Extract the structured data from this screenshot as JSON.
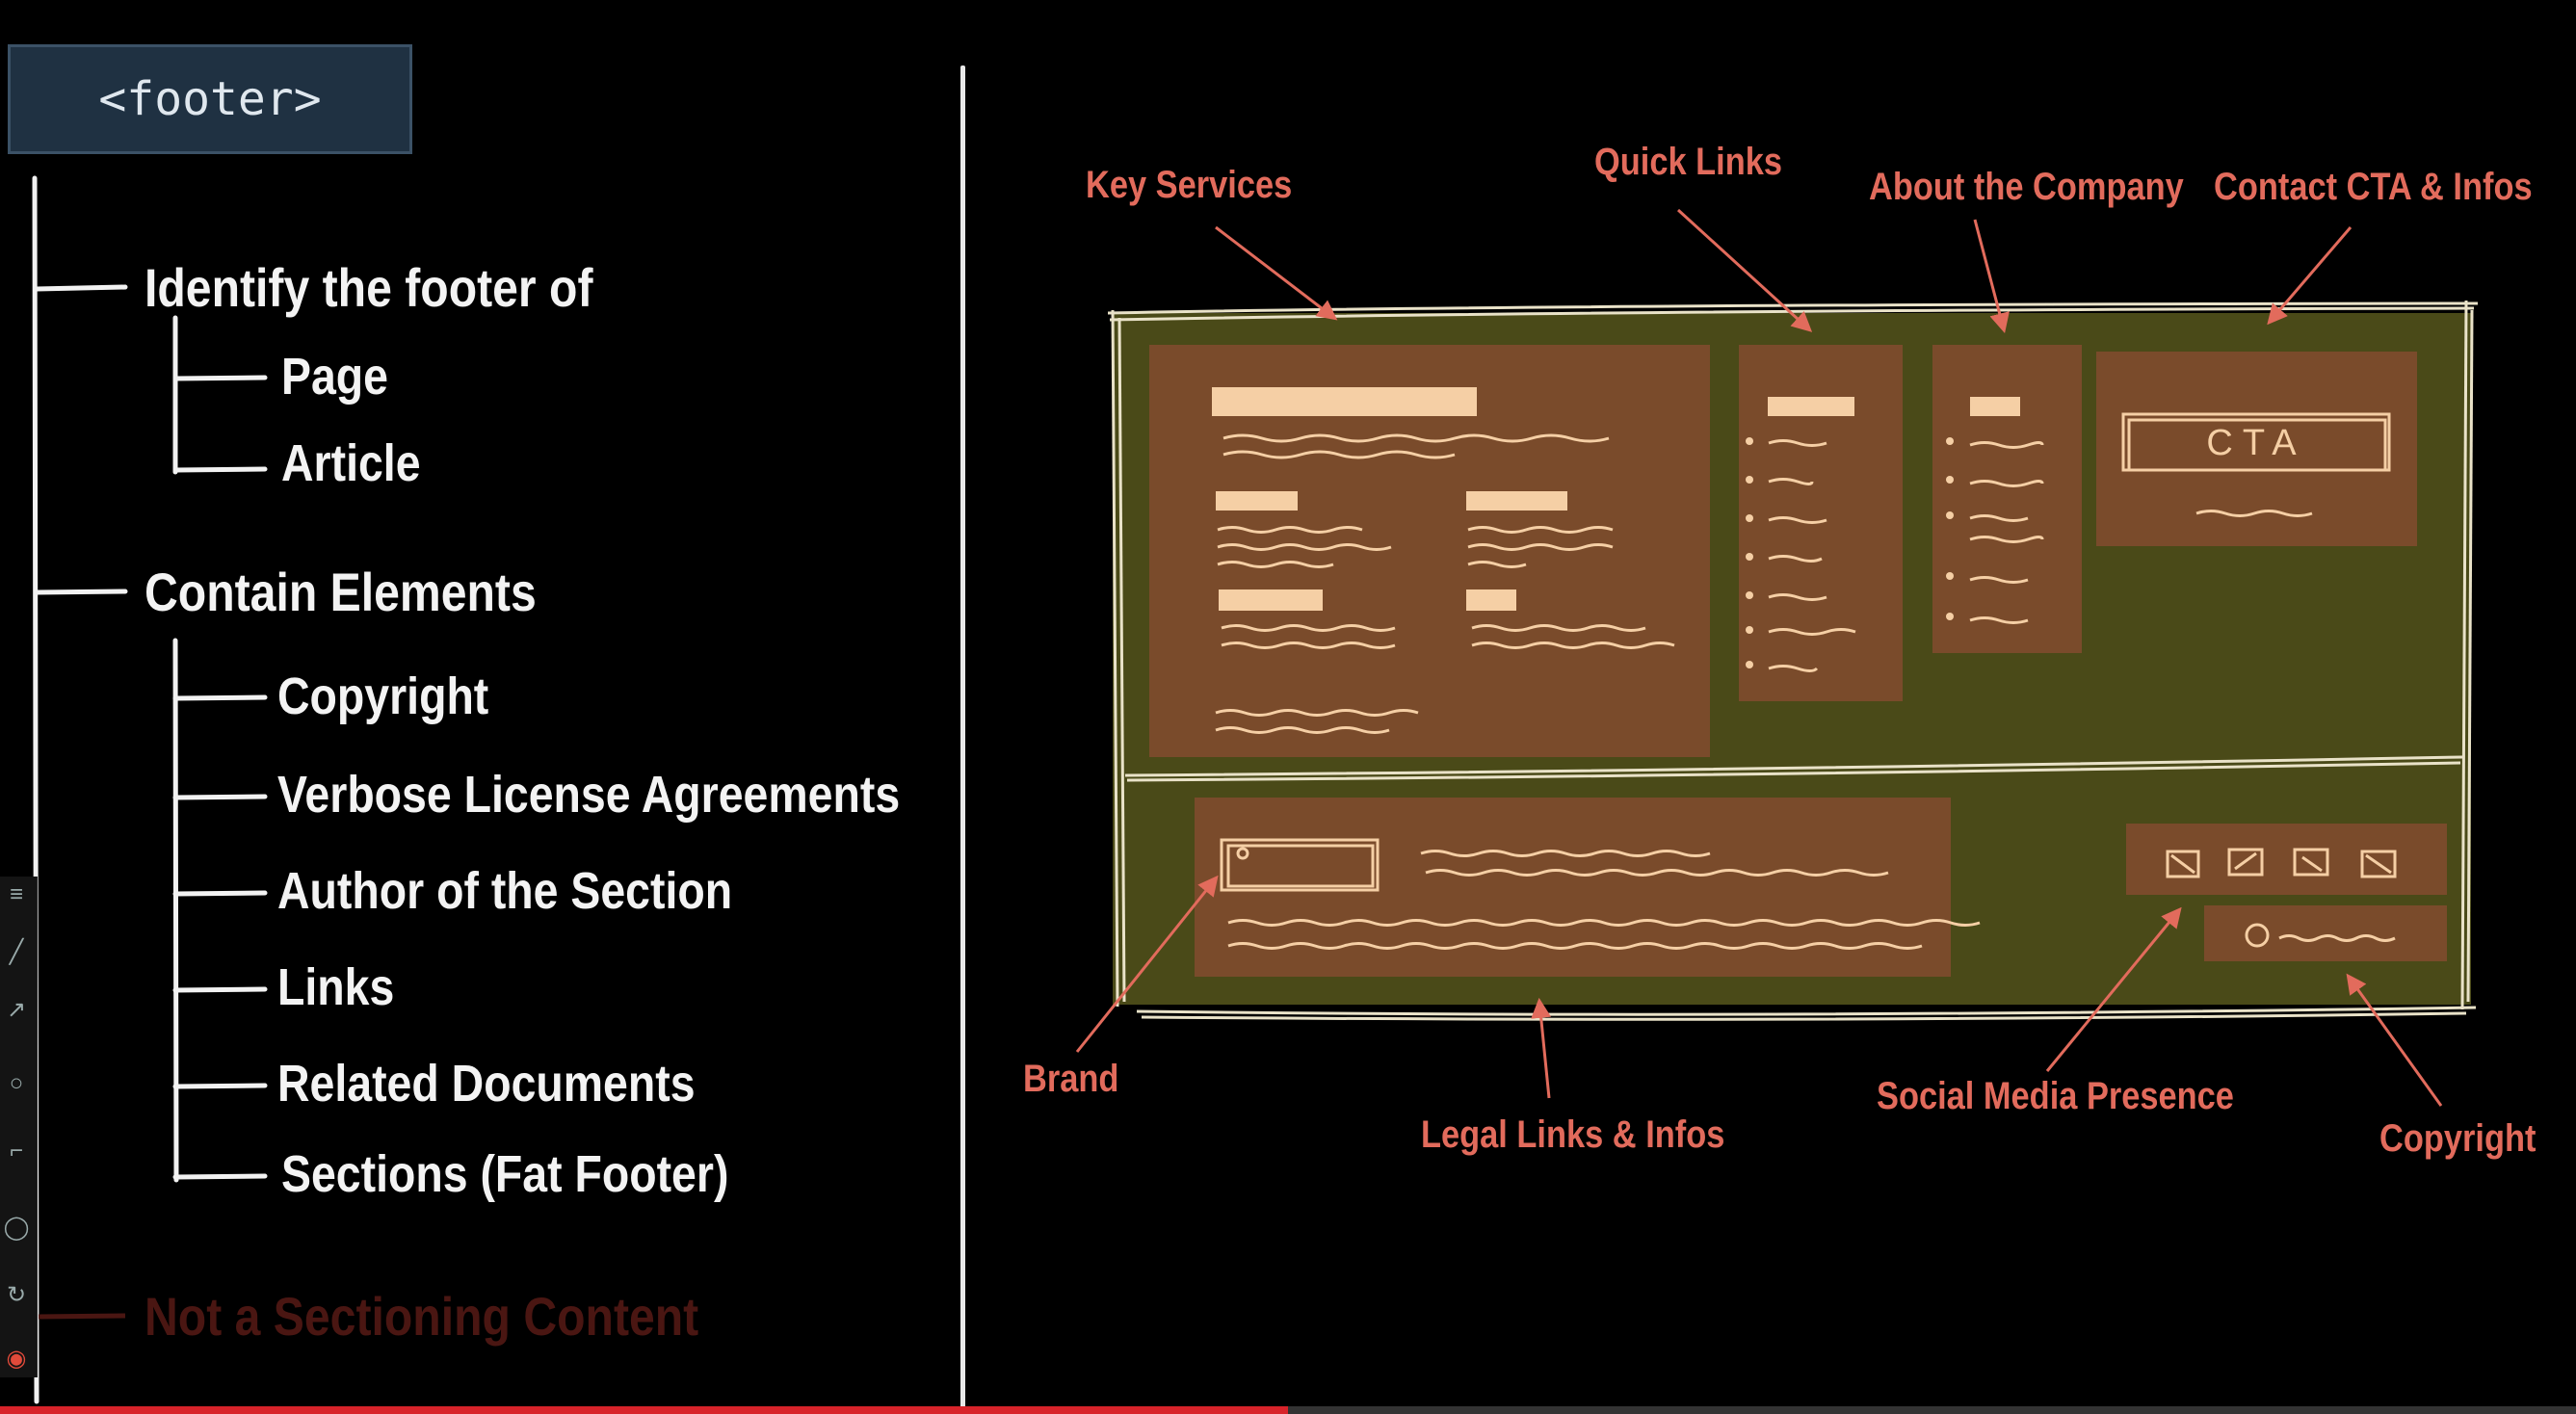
{
  "tag": "<footer>",
  "tree": {
    "identify": "Identify the footer of",
    "page": "Page",
    "article": "Article",
    "contain": "Contain Elements",
    "copyright": "Copyright",
    "license": "Verbose License Agreements",
    "author": "Author of the Section",
    "links": "Links",
    "related": "Related Documents",
    "sections": "Sections (Fat Footer)",
    "not_sectioning": "Not a Sectioning Content"
  },
  "wireframe": {
    "cta": "CTA",
    "callouts": {
      "key_services": "Key Services",
      "quick_links": "Quick Links",
      "about": "About the Company",
      "contact": "Contact CTA & Infos",
      "brand": "Brand",
      "legal": "Legal Links & Infos",
      "social": "Social Media Presence",
      "copyright": "Copyright"
    }
  },
  "colors": {
    "footer_bg": "#4a4a18",
    "panel_bg": "#7a4b2b",
    "highlight": "#f5cfa5",
    "callout": "#e26b5c",
    "tag_bg": "#1f3142"
  },
  "video_progress": 0.5
}
